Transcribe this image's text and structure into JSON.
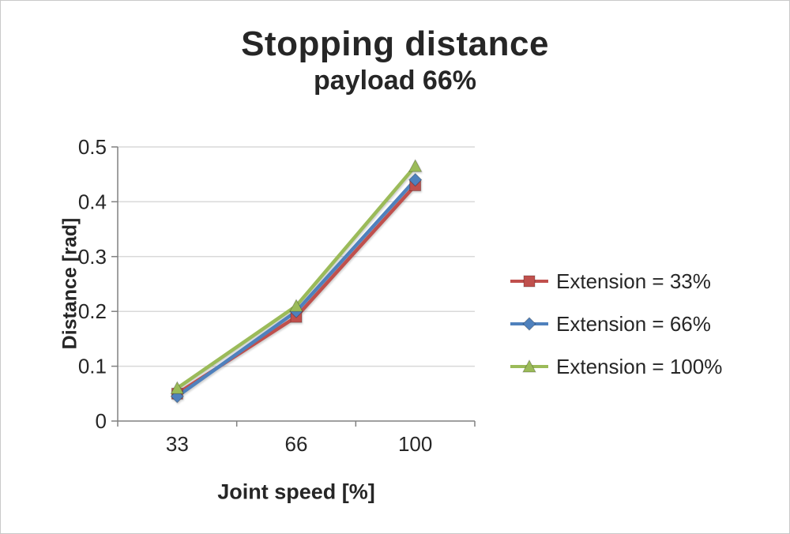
{
  "chart_data": {
    "type": "line",
    "title": "Stopping distance",
    "subtitle": "payload 66%",
    "xlabel": "Joint speed [%]",
    "ylabel": "Distance [rad]",
    "categories": [
      "33",
      "66",
      "100"
    ],
    "ylim": [
      0,
      0.5
    ],
    "ytick_step": 0.1,
    "grid": true,
    "legend_position": "right",
    "axis_color": "#808080",
    "gridline_color": "#d9d9d9",
    "series": [
      {
        "name": "Extension = 33%",
        "color": "#C0504D",
        "marker": "square",
        "values": [
          0.05,
          0.19,
          0.43
        ]
      },
      {
        "name": "Extension = 66%",
        "color": "#4F81BD",
        "marker": "diamond",
        "values": [
          0.045,
          0.2,
          0.44
        ]
      },
      {
        "name": "Extension = 100%",
        "color": "#9BBB59",
        "marker": "triangle",
        "values": [
          0.06,
          0.21,
          0.465
        ]
      }
    ]
  }
}
